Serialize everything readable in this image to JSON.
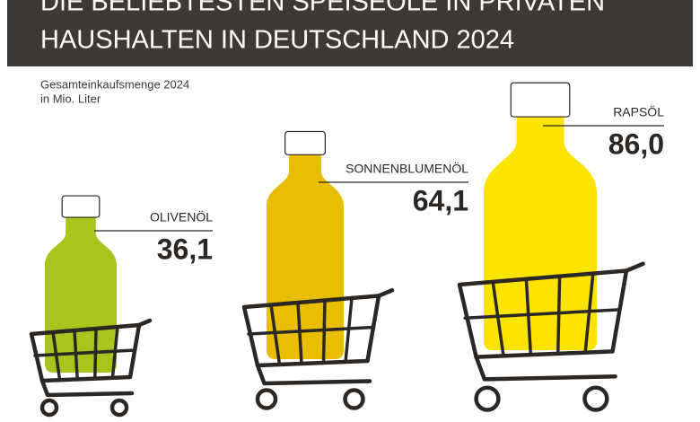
{
  "chart_data": {
    "type": "bar",
    "title": [
      "DIE BELIEBTESTEN SPEISEÖLE IN PRIVATEN",
      "HAUSHALTEN IN DEUTSCHLAND 2024"
    ],
    "subtitle": [
      "Gesamteinkaufsmenge 2024",
      "in Mio. Liter"
    ],
    "categories": [
      "OLIVENÖL",
      "SONNENBLUMENÖL",
      "RAPSÖL"
    ],
    "values": [
      36.1,
      64.1,
      86.0
    ],
    "value_labels": [
      "36,1",
      "64,1",
      "86,0"
    ],
    "colors": [
      "#a9c41c",
      "#e9bd00",
      "#fde300"
    ]
  }
}
